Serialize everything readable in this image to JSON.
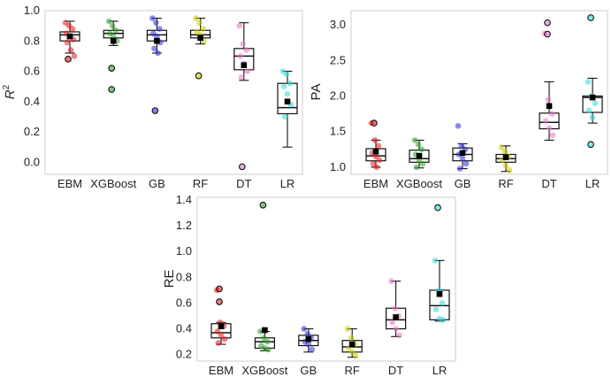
{
  "chart_data": [
    {
      "id": "r2",
      "type": "box",
      "ylabel": "R",
      "ylabel_sup": "2",
      "ylim": [
        -0.08,
        1.0
      ],
      "yticks": [
        "0.0",
        "0.2",
        "0.4",
        "0.6",
        "0.8",
        "1.0"
      ],
      "categories": [
        "EBM",
        "XGBoost",
        "GB",
        "RF",
        "DT",
        "LR"
      ],
      "colors": [
        "#e31a1c",
        "#2ca02c",
        "#2b2bd6",
        "#c8c800",
        "#e377c2",
        "#30d8d8"
      ],
      "stats": [
        {
          "q1": 0.8,
          "med": 0.84,
          "q3": 0.86,
          "lo": 0.72,
          "hi": 0.93,
          "mean": 0.83
        },
        {
          "q1": 0.82,
          "med": 0.85,
          "q3": 0.87,
          "lo": 0.77,
          "hi": 0.93,
          "mean": 0.8
        },
        {
          "q1": 0.8,
          "med": 0.84,
          "q3": 0.87,
          "lo": 0.72,
          "hi": 0.95,
          "mean": 0.8
        },
        {
          "q1": 0.82,
          "med": 0.84,
          "q3": 0.87,
          "lo": 0.78,
          "hi": 0.95,
          "mean": 0.82
        },
        {
          "q1": 0.61,
          "med": 0.7,
          "q3": 0.75,
          "lo": 0.54,
          "hi": 0.92,
          "mean": 0.64
        },
        {
          "q1": 0.32,
          "med": 0.36,
          "q3": 0.52,
          "lo": 0.1,
          "hi": 0.6,
          "mean": 0.4
        }
      ],
      "points": [
        [
          0.92,
          0.9,
          0.88,
          0.85,
          0.83,
          0.81,
          0.79,
          0.74,
          0.7
        ],
        [
          0.93,
          0.9,
          0.87,
          0.85,
          0.83,
          0.8
        ],
        [
          0.95,
          0.92,
          0.88,
          0.85,
          0.83,
          0.79,
          0.75,
          0.72
        ],
        [
          0.95,
          0.92,
          0.88,
          0.86,
          0.84,
          0.8
        ],
        [
          0.9,
          0.78,
          0.74,
          0.7,
          0.65,
          0.6,
          0.56
        ],
        [
          0.6,
          0.58,
          0.52,
          0.5,
          0.45,
          0.38,
          0.3
        ]
      ],
      "outliers": [
        [
          0.68
        ],
        [
          0.62,
          0.48
        ],
        [
          0.34
        ],
        [
          0.57
        ],
        [
          -0.03
        ],
        []
      ]
    },
    {
      "id": "pa",
      "type": "box",
      "ylabel": "PA",
      "ylim": [
        0.9,
        3.2
      ],
      "yticks": [
        "1.0",
        "1.5",
        "2.0",
        "2.5",
        "3.0"
      ],
      "categories": [
        "EBM",
        "XGBoost",
        "GB",
        "RF",
        "DT",
        "LR"
      ],
      "colors": [
        "#e31a1c",
        "#2ca02c",
        "#2b2bd6",
        "#c8c800",
        "#e377c2",
        "#30d8d8"
      ],
      "stats": [
        {
          "q1": 1.09,
          "med": 1.16,
          "q3": 1.26,
          "lo": 1.0,
          "hi": 1.38,
          "mean": 1.22
        },
        {
          "q1": 1.07,
          "med": 1.12,
          "q3": 1.24,
          "lo": 0.99,
          "hi": 1.38,
          "mean": 1.16
        },
        {
          "q1": 1.09,
          "med": 1.18,
          "q3": 1.27,
          "lo": 0.98,
          "hi": 1.33,
          "mean": 1.2
        },
        {
          "q1": 1.07,
          "med": 1.12,
          "q3": 1.18,
          "lo": 0.94,
          "hi": 1.3,
          "mean": 1.14
        },
        {
          "q1": 1.54,
          "med": 1.63,
          "q3": 1.76,
          "lo": 1.38,
          "hi": 2.2,
          "mean": 1.86
        },
        {
          "q1": 1.77,
          "med": 1.98,
          "q3": 2.0,
          "lo": 1.62,
          "hi": 2.25,
          "mean": 1.98
        }
      ],
      "points": [
        [
          1.62,
          1.38,
          1.3,
          1.2,
          1.15,
          1.1,
          1.05,
          1.0
        ],
        [
          1.38,
          1.32,
          1.25,
          1.18,
          1.1,
          1.05,
          1.0
        ],
        [
          1.58,
          1.3,
          1.25,
          1.18,
          1.12,
          1.05,
          0.98
        ],
        [
          1.28,
          1.22,
          1.15,
          1.1,
          1.02,
          0.96
        ],
        [
          2.88,
          1.95,
          1.75,
          1.65,
          1.55,
          1.45
        ],
        [
          2.2,
          2.0,
          1.9,
          1.8,
          1.7
        ]
      ],
      "outliers": [
        [
          1.62
        ],
        [],
        [],
        [],
        [
          3.03,
          2.87
        ],
        [
          3.1,
          1.32
        ]
      ]
    },
    {
      "id": "re",
      "type": "box",
      "ylabel": "RE",
      "ylim": [
        0.15,
        1.42
      ],
      "yticks": [
        "0.2",
        "0.4",
        "0.6",
        "0.8",
        "1.0",
        "1.2",
        "1.4"
      ],
      "categories": [
        "EBM",
        "XGBoost",
        "GB",
        "RF",
        "DT",
        "LR"
      ],
      "colors": [
        "#e31a1c",
        "#2ca02c",
        "#2b2bd6",
        "#c8c800",
        "#e377c2",
        "#30d8d8"
      ],
      "stats": [
        {
          "q1": 0.33,
          "med": 0.37,
          "q3": 0.44,
          "lo": 0.28,
          "hi": 0.45,
          "mean": 0.42
        },
        {
          "q1": 0.25,
          "med": 0.3,
          "q3": 0.33,
          "lo": 0.23,
          "hi": 0.38,
          "mean": 0.39
        },
        {
          "q1": 0.27,
          "med": 0.31,
          "q3": 0.35,
          "lo": 0.22,
          "hi": 0.4,
          "mean": 0.32
        },
        {
          "q1": 0.22,
          "med": 0.26,
          "q3": 0.31,
          "lo": 0.18,
          "hi": 0.4,
          "mean": 0.28
        },
        {
          "q1": 0.4,
          "med": 0.47,
          "q3": 0.56,
          "lo": 0.34,
          "hi": 0.77,
          "mean": 0.49
        },
        {
          "q1": 0.47,
          "med": 0.58,
          "q3": 0.7,
          "lo": 0.46,
          "hi": 0.93,
          "mean": 0.67
        }
      ],
      "points": [
        [
          0.7,
          0.45,
          0.42,
          0.38,
          0.35,
          0.32,
          0.29
        ],
        [
          0.38,
          0.33,
          0.3,
          0.27,
          0.25,
          0.24
        ],
        [
          0.4,
          0.36,
          0.33,
          0.3,
          0.28,
          0.24
        ],
        [
          0.4,
          0.33,
          0.28,
          0.25,
          0.22,
          0.19
        ],
        [
          0.77,
          0.56,
          0.5,
          0.45,
          0.4,
          0.35
        ],
        [
          0.93,
          0.7,
          0.6,
          0.55,
          0.48,
          0.47
        ]
      ],
      "outliers": [
        [
          0.71,
          0.61
        ],
        [
          1.36
        ],
        [],
        [],
        [],
        [
          1.34
        ]
      ]
    }
  ]
}
